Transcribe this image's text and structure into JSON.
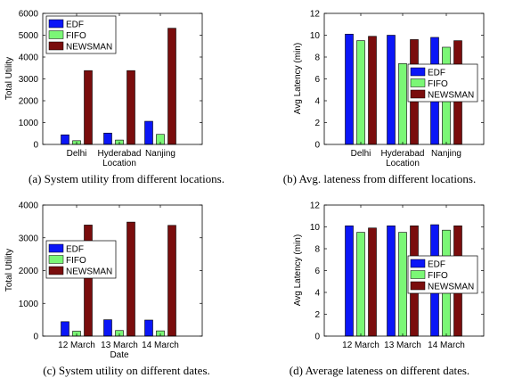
{
  "colors": {
    "EDF": "#0b16f7",
    "FIFO": "#7bf776",
    "NEWSMAN": "#7a0d0d"
  },
  "captions": [
    "(a) System utility from different locations.",
    "(b) Avg. lateness from different locations.",
    "(c) System utility on different dates.",
    "(d) Average lateness on different dates."
  ],
  "chart_data": [
    {
      "type": "bar",
      "xlabel": "Location",
      "ylabel": "Total Utility",
      "ylim": [
        0,
        6000
      ],
      "yticks": [
        0,
        1000,
        2000,
        3000,
        4000,
        5000,
        6000
      ],
      "categories": [
        "Delhi",
        "Hyderabad",
        "Nanjing"
      ],
      "series": [
        {
          "name": "EDF",
          "values": [
            440,
            520,
            1060
          ]
        },
        {
          "name": "FIFO",
          "values": [
            170,
            200,
            460
          ]
        },
        {
          "name": "NEWSMAN",
          "values": [
            3380,
            3380,
            5320
          ]
        }
      ],
      "legend": "top-left",
      "grid": false
    },
    {
      "type": "bar",
      "xlabel": "Location",
      "ylabel": "Avg Latency (min)",
      "ylim": [
        0,
        12
      ],
      "yticks": [
        0,
        2,
        4,
        6,
        8,
        10,
        12
      ],
      "categories": [
        "Delhi",
        "Hyderabad",
        "Nanjing"
      ],
      "series": [
        {
          "name": "EDF",
          "values": [
            10.1,
            10.0,
            9.8
          ]
        },
        {
          "name": "FIFO",
          "values": [
            9.5,
            7.4,
            8.9
          ]
        },
        {
          "name": "NEWSMAN",
          "values": [
            9.9,
            9.6,
            9.5
          ]
        }
      ],
      "legend": "center-right",
      "grid": false
    },
    {
      "type": "bar",
      "xlabel": "Date",
      "ylabel": "Total Utility",
      "ylim": [
        0,
        4000
      ],
      "yticks": [
        0,
        1000,
        2000,
        3000,
        4000
      ],
      "categories": [
        "12 March",
        "13 March",
        "14 March"
      ],
      "series": [
        {
          "name": "EDF",
          "values": [
            440,
            500,
            490
          ]
        },
        {
          "name": "FIFO",
          "values": [
            150,
            170,
            160
          ]
        },
        {
          "name": "NEWSMAN",
          "values": [
            3390,
            3480,
            3380
          ]
        }
      ],
      "legend": "center-left",
      "grid": false
    },
    {
      "type": "bar",
      "xlabel": "",
      "ylabel": "Avg Latency (min)",
      "ylim": [
        0,
        12
      ],
      "yticks": [
        0,
        2,
        4,
        6,
        8,
        10,
        12
      ],
      "categories": [
        "12 March",
        "13 March",
        "14 March"
      ],
      "series": [
        {
          "name": "EDF",
          "values": [
            10.1,
            10.1,
            10.2
          ]
        },
        {
          "name": "FIFO",
          "values": [
            9.5,
            9.5,
            9.7
          ]
        },
        {
          "name": "NEWSMAN",
          "values": [
            9.9,
            10.1,
            10.1
          ]
        }
      ],
      "legend": "center-right",
      "grid": false
    }
  ]
}
